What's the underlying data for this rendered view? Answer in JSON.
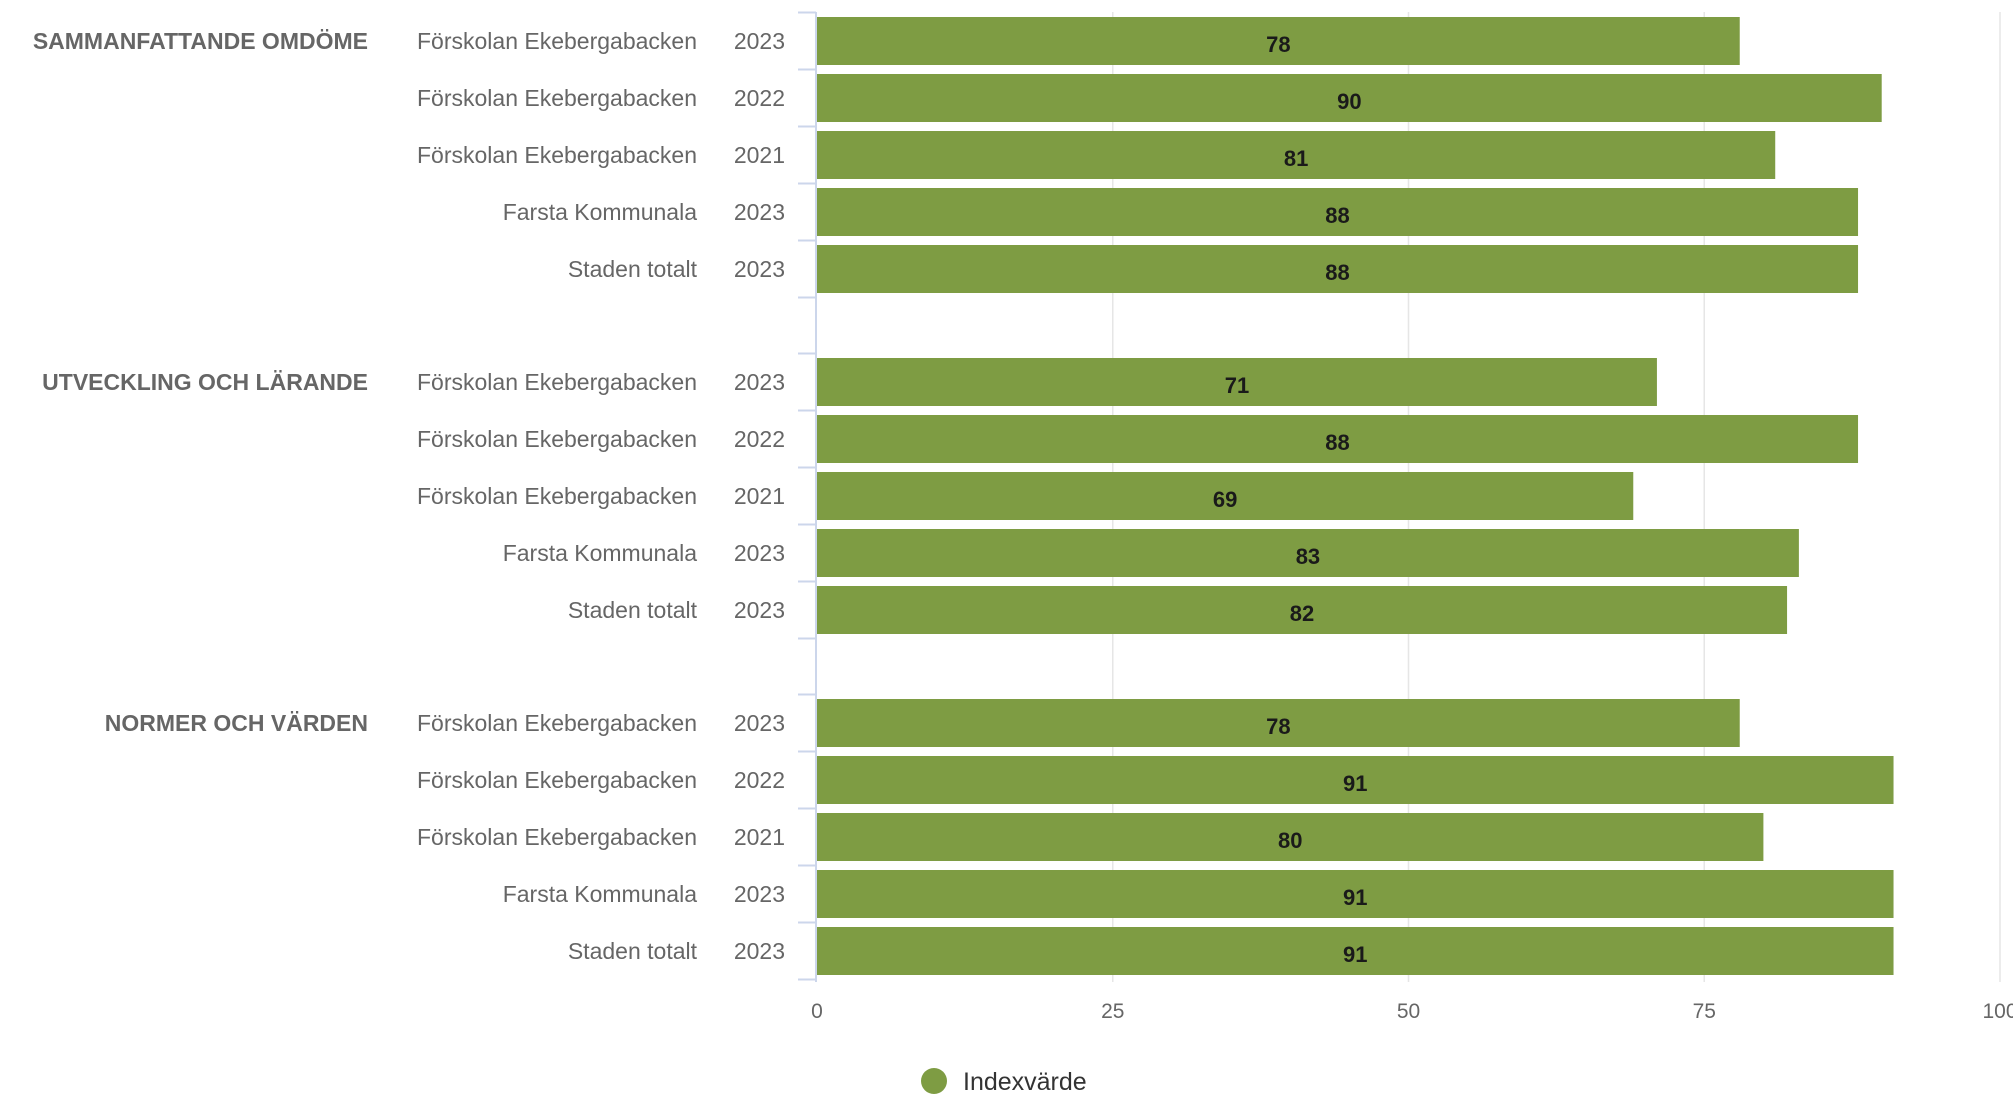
{
  "colors": {
    "bar": "#7e9c43",
    "grid": "#e6e6e6",
    "axis": "#ccd6eb",
    "text": "#666666"
  },
  "chart_data": {
    "type": "bar",
    "orientation": "horizontal",
    "xlim": [
      0,
      100
    ],
    "xticks": [
      "0",
      "25",
      "50",
      "75",
      "100"
    ],
    "grid": true,
    "legend_position": "bottom",
    "series": [
      {
        "name": "Indexvärde",
        "color": "#7e9c43"
      }
    ],
    "groups": [
      {
        "label": "SAMMANFATTANDE OMDÖME",
        "rows": [
          {
            "name": "Förskolan Ekebergabacken",
            "year": "2023",
            "value": 78
          },
          {
            "name": "Förskolan Ekebergabacken",
            "year": "2022",
            "value": 90
          },
          {
            "name": "Förskolan Ekebergabacken",
            "year": "2021",
            "value": 81
          },
          {
            "name": "Farsta Kommunala",
            "year": "2023",
            "value": 88
          },
          {
            "name": "Staden totalt",
            "year": "2023",
            "value": 88
          }
        ]
      },
      {
        "label": "UTVECKLING OCH LÄRANDE",
        "rows": [
          {
            "name": "Förskolan Ekebergabacken",
            "year": "2023",
            "value": 71
          },
          {
            "name": "Förskolan Ekebergabacken",
            "year": "2022",
            "value": 88
          },
          {
            "name": "Förskolan Ekebergabacken",
            "year": "2021",
            "value": 69
          },
          {
            "name": "Farsta Kommunala",
            "year": "2023",
            "value": 83
          },
          {
            "name": "Staden totalt",
            "year": "2023",
            "value": 82
          }
        ]
      },
      {
        "label": "NORMER OCH VÄRDEN",
        "rows": [
          {
            "name": "Förskolan Ekebergabacken",
            "year": "2023",
            "value": 78
          },
          {
            "name": "Förskolan Ekebergabacken",
            "year": "2022",
            "value": 91
          },
          {
            "name": "Förskolan Ekebergabacken",
            "year": "2021",
            "value": 80
          },
          {
            "name": "Farsta Kommunala",
            "year": "2023",
            "value": 91
          },
          {
            "name": "Staden totalt",
            "year": "2023",
            "value": 91
          }
        ]
      }
    ]
  }
}
